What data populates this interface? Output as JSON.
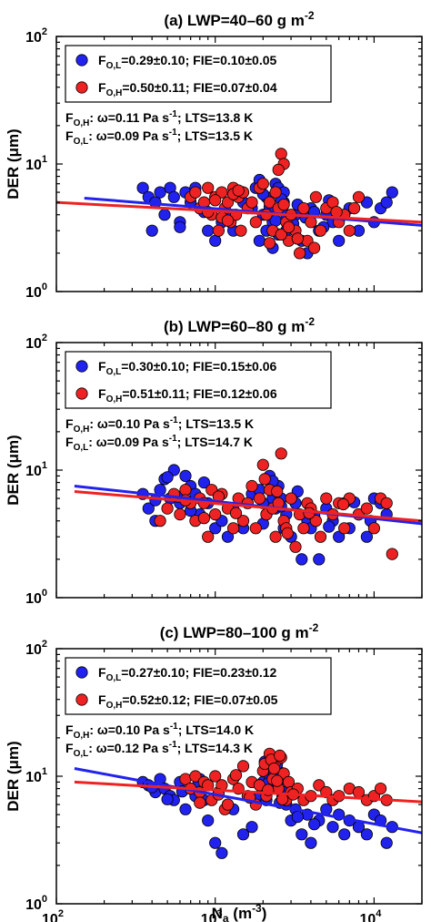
{
  "chart_data": [
    {
      "type": "scatter",
      "title": "(a) LWP=40–60 g m",
      "title_sup": "-2",
      "ylabel": "DER (μm)",
      "xlabel": "",
      "x_scale": "log",
      "y_scale": "log",
      "xlim": [
        100,
        20000
      ],
      "ylim": [
        1,
        100
      ],
      "x_ticks": [
        "10",
        "10",
        "10"
      ],
      "x_tick_exp": [
        "2",
        "3",
        "4"
      ],
      "y_ticks": [
        "10",
        "10",
        "10"
      ],
      "y_tick_exp": [
        "0",
        "1",
        "2"
      ],
      "legend_position": "top",
      "legend": [
        {
          "main": "F",
          "sub": "O,L",
          "rest": "=0.29±0.10; FIE=0.10±0.05",
          "color": "#2222ee"
        },
        {
          "main": "F",
          "sub": "O,H",
          "rest": "=0.50±0.11; FIE=0.07±0.04",
          "color": "#ee2222"
        }
      ],
      "annotations": [
        {
          "main": "F",
          "sub": "O,H",
          "rest": ": ω=0.11 Pa s",
          "sup": "-1",
          "tail": "; LTS=13.8 K"
        },
        {
          "main": "F",
          "sub": "O,L",
          "rest": ": ω=0.09 Pa s",
          "sup": "-1",
          "tail": "; LTS=13.5 K"
        }
      ],
      "series": [
        {
          "name": "F_O,L",
          "color": "#2222ee",
          "x": [
            350,
            380,
            420,
            450,
            480,
            520,
            550,
            600,
            650,
            700,
            750,
            800,
            900,
            1000,
            1100,
            1200,
            1300,
            1500,
            1700,
            1800,
            1900,
            2000,
            2100,
            2200,
            2300,
            2400,
            2500,
            2600,
            2700,
            2800,
            3000,
            3200,
            3500,
            3800,
            4000,
            4500,
            5000,
            5500,
            6000,
            6500,
            7000,
            8000,
            9000,
            10000,
            11000,
            12000,
            13000,
            400,
            600,
            850,
            1900,
            2100,
            2300,
            2500,
            2700,
            3300,
            3700,
            4200,
            4800,
            5200,
            2000,
            2200,
            2400,
            2600,
            2800,
            3100
          ],
          "y": [
            6.5,
            5.5,
            5.0,
            6.0,
            4.0,
            6.5,
            5.5,
            3.5,
            6.0,
            5.0,
            6.5,
            4.5,
            3.0,
            2.5,
            3.5,
            4.0,
            3.0,
            5.0,
            4.5,
            6.5,
            7.5,
            4.0,
            5.5,
            5.0,
            3.5,
            7.0,
            6.5,
            4.5,
            5.0,
            3.0,
            3.5,
            4.0,
            2.5,
            2.0,
            4.5,
            3.0,
            4.0,
            3.5,
            2.5,
            4.0,
            4.5,
            3.0,
            5.0,
            3.5,
            4.5,
            5.0,
            6.0,
            3.0,
            3.2,
            4.2,
            2.5,
            3.0,
            2.2,
            2.8,
            6.0,
            4.8,
            3.8,
            4.2,
            3.2,
            5.2,
            5.8,
            4.6,
            3.6,
            5.3,
            4.0,
            3.4
          ]
        },
        {
          "name": "F_O,H",
          "color": "#ee2222",
          "x": [
            700,
            750,
            800,
            850,
            900,
            950,
            1000,
            1050,
            1100,
            1150,
            1200,
            1250,
            1300,
            1350,
            1400,
            1450,
            1500,
            1600,
            1700,
            1800,
            1900,
            2000,
            2100,
            2200,
            2300,
            2400,
            2500,
            2600,
            2700,
            2800,
            2900,
            3000,
            3200,
            3400,
            3600,
            3800,
            4000,
            4300,
            4600,
            5000,
            5500,
            6000,
            6500,
            7000,
            7500,
            8000,
            900,
            1100,
            1300,
            2500,
            2600,
            2700,
            2900,
            3300,
            4200,
            5800,
            1000,
            1200,
            1400,
            2200
          ],
          "y": [
            5.5,
            6.0,
            4.5,
            5.0,
            6.5,
            4.0,
            5.5,
            3.0,
            6.0,
            4.5,
            5.0,
            3.5,
            6.5,
            4.0,
            5.5,
            3.0,
            6.0,
            4.5,
            5.0,
            3.5,
            6.5,
            7.0,
            4.0,
            5.0,
            3.0,
            6.0,
            4.5,
            12.0,
            10.0,
            3.5,
            2.5,
            4.0,
            3.0,
            2.0,
            4.5,
            2.5,
            3.5,
            5.5,
            3.0,
            4.5,
            5.0,
            3.5,
            4.0,
            3.0,
            4.5,
            5.5,
            4.2,
            3.8,
            5.8,
            9.0,
            2.8,
            4.8,
            3.2,
            2.6,
            2.2,
            4.2,
            5.2,
            3.6,
            6.2,
            2.4
          ]
        }
      ],
      "fits": [
        {
          "name": "F_O,L fit",
          "color": "#2222ee",
          "x": [
            150,
            20000
          ],
          "y": [
            5.4,
            3.3
          ]
        },
        {
          "name": "F_O,H fit",
          "color": "#ee2222",
          "x": [
            100,
            20000
          ],
          "y": [
            5.0,
            3.5
          ]
        }
      ]
    },
    {
      "type": "scatter",
      "title": "(b) LWP=60–80 g m",
      "title_sup": "-2",
      "ylabel": "DER (μm)",
      "xlabel": "",
      "x_scale": "log",
      "y_scale": "log",
      "xlim": [
        100,
        20000
      ],
      "ylim": [
        1,
        100
      ],
      "x_ticks": [
        "10",
        "10",
        "10"
      ],
      "x_tick_exp": [
        "2",
        "3",
        "4"
      ],
      "y_ticks": [
        "10",
        "10",
        "10"
      ],
      "y_tick_exp": [
        "0",
        "1",
        "2"
      ],
      "legend_position": "top",
      "legend": [
        {
          "main": "F",
          "sub": "O,L",
          "rest": "=0.30±0.10; FIE=0.15±0.06",
          "color": "#2222ee"
        },
        {
          "main": "F",
          "sub": "O,H",
          "rest": "=0.51±0.11; FIE=0.12±0.06",
          "color": "#ee2222"
        }
      ],
      "annotations": [
        {
          "main": "F",
          "sub": "O,H",
          "rest": ": ω=0.10 Pa s",
          "sup": "-1",
          "tail": "; LTS=13.5 K"
        },
        {
          "main": "F",
          "sub": "O,L",
          "rest": ": ω=0.09 Pa s",
          "sup": "-1",
          "tail": "; LTS=14.7 K"
        }
      ],
      "series": [
        {
          "name": "F_O,L",
          "color": "#2222ee",
          "x": [
            350,
            380,
            420,
            450,
            480,
            520,
            550,
            600,
            650,
            700,
            750,
            800,
            850,
            900,
            1000,
            1100,
            1200,
            1300,
            1500,
            1700,
            1900,
            2000,
            2100,
            2200,
            2300,
            2400,
            2500,
            2600,
            2700,
            2800,
            3000,
            3200,
            3500,
            3800,
            4000,
            4500,
            5000,
            5500,
            6000,
            6500,
            7000,
            8000,
            9000,
            10000,
            11000,
            12000,
            420,
            500,
            580,
            700,
            2000,
            2300,
            2600,
            3300,
            4200,
            5200,
            7500,
            9500
          ],
          "y": [
            6.5,
            5.0,
            4.0,
            7.0,
            8.5,
            6.0,
            10.0,
            5.5,
            9.0,
            7.5,
            6.5,
            4.5,
            8.0,
            5.5,
            3.5,
            4.0,
            3.0,
            5.0,
            3.5,
            6.5,
            7.0,
            5.5,
            4.5,
            9.0,
            6.0,
            5.0,
            7.5,
            6.0,
            3.5,
            4.5,
            3.0,
            5.5,
            2.0,
            4.0,
            3.5,
            2.0,
            5.0,
            4.0,
            3.0,
            5.5,
            3.5,
            4.5,
            3.0,
            6.0,
            5.5,
            4.5,
            5.8,
            8.8,
            6.2,
            4.8,
            3.8,
            8.2,
            5.2,
            6.8,
            4.4,
            3.6,
            5.6,
            4.0
          ]
        },
        {
          "name": "F_O,H",
          "color": "#ee2222",
          "x": [
            450,
            500,
            550,
            600,
            650,
            700,
            750,
            800,
            850,
            900,
            950,
            1000,
            1100,
            1200,
            1300,
            1400,
            1500,
            1600,
            1700,
            1800,
            1900,
            2000,
            2100,
            2200,
            2300,
            2400,
            2500,
            2600,
            2700,
            2800,
            3000,
            3200,
            3400,
            3600,
            3800,
            4000,
            4300,
            4600,
            5000,
            5500,
            6000,
            6500,
            7000,
            8000,
            9000,
            10000,
            11000,
            12000,
            13000,
            650,
            850,
            1050,
            1350,
            2050,
            2450,
            2850,
            3900,
            6400
          ],
          "y": [
            4.0,
            5.0,
            6.5,
            4.5,
            7.0,
            5.5,
            4.0,
            6.0,
            5.5,
            3.0,
            7.0,
            4.5,
            6.5,
            5.0,
            3.5,
            6.0,
            4.0,
            5.5,
            7.5,
            3.5,
            6.0,
            11.0,
            4.5,
            7.0,
            5.0,
            3.0,
            5.5,
            13.5,
            4.0,
            3.5,
            6.0,
            2.5,
            4.5,
            3.5,
            5.5,
            5.0,
            4.0,
            3.0,
            6.0,
            4.5,
            5.5,
            3.5,
            6.0,
            4.5,
            5.0,
            3.5,
            6.0,
            5.5,
            2.2,
            5.8,
            4.2,
            6.2,
            4.6,
            8.5,
            6.8,
            3.2,
            4.6,
            5.4
          ]
        }
      ],
      "fits": [
        {
          "name": "F_O,L fit",
          "color": "#2222ee",
          "x": [
            130,
            20000
          ],
          "y": [
            7.5,
            3.8
          ]
        },
        {
          "name": "F_O,H fit",
          "color": "#ee2222",
          "x": [
            130,
            20000
          ],
          "y": [
            6.8,
            4.0
          ]
        }
      ]
    },
    {
      "type": "scatter",
      "title": "(c) LWP=80–100 g m",
      "title_sup": "-2",
      "ylabel": "DER (μm)",
      "xlabel": "N",
      "xlabel_sub": "a",
      "xlabel_rest": " (m",
      "xlabel_sup": "-3",
      "xlabel_tail": ")",
      "x_scale": "log",
      "y_scale": "log",
      "xlim": [
        100,
        20000
      ],
      "ylim": [
        1,
        100
      ],
      "x_ticks": [
        "10",
        "10",
        "10"
      ],
      "x_tick_exp": [
        "2",
        "3",
        "4"
      ],
      "y_ticks": [
        "10",
        "10",
        "10"
      ],
      "y_tick_exp": [
        "0",
        "1",
        "2"
      ],
      "legend_position": "top",
      "legend": [
        {
          "main": "F",
          "sub": "O,L",
          "rest": "=0.27±0.10; FIE=0.23±0.12",
          "color": "#2222ee"
        },
        {
          "main": "F",
          "sub": "O,H",
          "rest": "=0.52±0.12; FIE=0.07±0.05",
          "color": "#ee2222"
        }
      ],
      "annotations": [
        {
          "main": "F",
          "sub": "O,H",
          "rest": ": ω=0.10 Pa s",
          "sup": "-1",
          "tail": "; LTS=14.0 K"
        },
        {
          "main": "F",
          "sub": "O,L",
          "rest": ": ω=0.12 Pa s",
          "sup": "-1",
          "tail": "; LTS=14.3 K"
        }
      ],
      "series": [
        {
          "name": "F_O,L",
          "color": "#2222ee",
          "x": [
            350,
            380,
            420,
            450,
            480,
            520,
            550,
            600,
            650,
            700,
            750,
            800,
            850,
            900,
            1000,
            1100,
            1200,
            1300,
            1500,
            1700,
            1900,
            2000,
            2100,
            2200,
            2300,
            2400,
            2500,
            2600,
            2700,
            2800,
            3000,
            3200,
            3500,
            3800,
            4000,
            4500,
            5000,
            5500,
            6000,
            6500,
            7000,
            8000,
            9000,
            10000,
            11000,
            12000,
            13000,
            400,
            500,
            620,
            780,
            2050,
            2250,
            2450,
            2650,
            2350,
            2550,
            2150,
            3300,
            4200
          ],
          "y": [
            9.0,
            8.5,
            7.5,
            9.5,
            8.0,
            7.0,
            6.5,
            9.0,
            5.5,
            8.0,
            7.0,
            9.5,
            6.5,
            4.5,
            3.0,
            2.5,
            6.0,
            5.5,
            3.5,
            4.0,
            7.0,
            9.0,
            6.5,
            10.0,
            12.0,
            8.5,
            11.0,
            9.5,
            7.5,
            6.0,
            4.5,
            5.5,
            3.5,
            5.0,
            3.0,
            4.5,
            5.5,
            4.0,
            5.0,
            3.5,
            4.5,
            4.0,
            3.5,
            5.0,
            4.5,
            3.0,
            4.0,
            8.2,
            6.6,
            7.6,
            8.6,
            13.0,
            8.0,
            12.5,
            7.0,
            10.5,
            6.2,
            8.8,
            4.8,
            4.2
          ]
        },
        {
          "name": "F_O,H",
          "color": "#ee2222",
          "x": [
            650,
            700,
            750,
            800,
            850,
            900,
            950,
            1000,
            1050,
            1100,
            1150,
            1200,
            1300,
            1400,
            1500,
            1600,
            1700,
            1800,
            1900,
            2000,
            2100,
            2200,
            2300,
            2400,
            2500,
            2600,
            2700,
            2800,
            2900,
            3000,
            3300,
            3600,
            4000,
            4500,
            5000,
            5500,
            6000,
            7000,
            8000,
            9000,
            10000,
            11000,
            12000,
            800,
            1050,
            1350,
            1650,
            2050,
            2250,
            2450,
            2650,
            2150,
            2350,
            2550,
            3100
          ],
          "y": [
            9.5,
            8.0,
            10.0,
            7.5,
            9.0,
            8.5,
            6.5,
            10.0,
            7.5,
            8.5,
            5.5,
            6.0,
            9.5,
            8.0,
            12.0,
            7.0,
            9.0,
            6.0,
            8.5,
            11.0,
            7.0,
            15.0,
            9.5,
            13.0,
            8.0,
            14.0,
            10.5,
            6.5,
            9.0,
            7.5,
            8.0,
            6.5,
            7.0,
            8.5,
            7.5,
            6.5,
            7.0,
            8.0,
            7.5,
            6.5,
            7.0,
            8.0,
            6.5,
            6.2,
            7.2,
            10.2,
            6.8,
            12.5,
            13.5,
            9.2,
            6.6,
            7.8,
            11.5,
            14.5,
            7.2
          ]
        }
      ],
      "fits": [
        {
          "name": "F_O,L fit",
          "color": "#2222ee",
          "x": [
            130,
            20000
          ],
          "y": [
            11.5,
            3.6
          ]
        },
        {
          "name": "F_O,H fit",
          "color": "#ee2222",
          "x": [
            130,
            20000
          ],
          "y": [
            9.0,
            6.3
          ]
        }
      ]
    }
  ]
}
